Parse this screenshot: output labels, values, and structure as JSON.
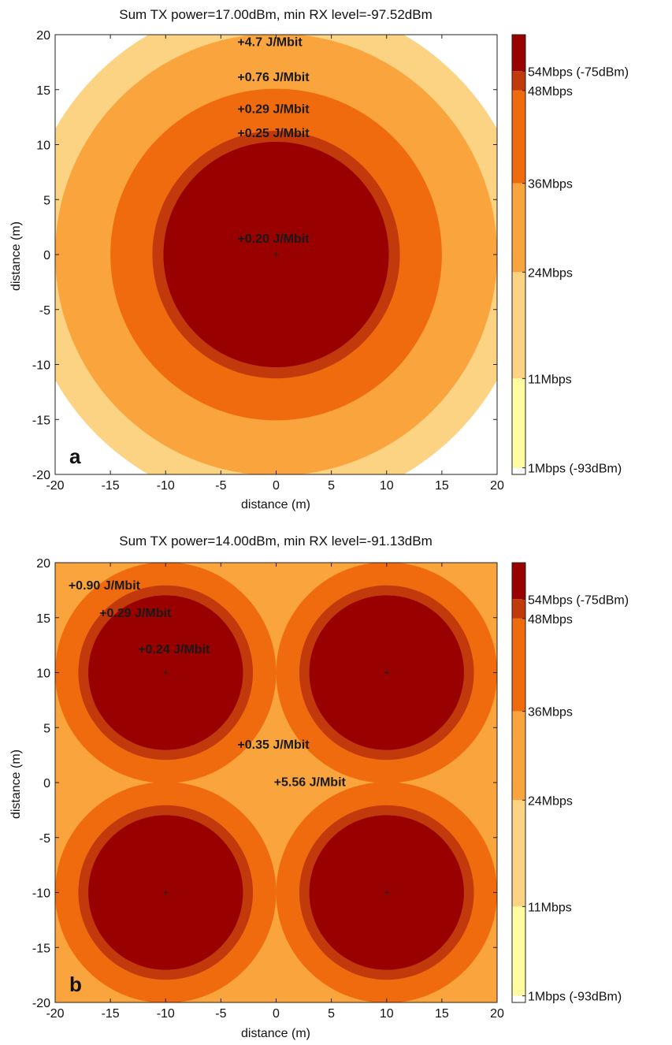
{
  "chart_data": [
    {
      "type": "heatmap",
      "panel": "a",
      "title": "Sum TX power=17.00dBm, min RX level=-97.52dBm",
      "xlabel": "distance (m)",
      "ylabel": "distance (m)",
      "xlim": [
        -20,
        20
      ],
      "ylim": [
        -20,
        20
      ],
      "xticks": [
        "-20",
        "-15",
        "-10",
        "-5",
        "0",
        "5",
        "10",
        "15",
        "20"
      ],
      "yticks": [
        "20",
        "15",
        "10",
        "5",
        "0",
        "-5",
        "-10",
        "-15",
        "-20"
      ],
      "grid": false,
      "access_points": [
        [
          0,
          0
        ]
      ],
      "zone_radii_m": [
        10.2,
        11.2,
        15.0,
        20.0,
        23.0
      ],
      "annotations": [
        {
          "text": "+4.7 J/Mbit",
          "x": -3.5,
          "y": 19.4
        },
        {
          "text": "+0.76 J/Mbit",
          "x": -3.5,
          "y": 16.2
        },
        {
          "text": "+0.29 J/Mbit",
          "x": -3.5,
          "y": 13.3
        },
        {
          "text": "+0.25 J/Mbit",
          "x": -3.5,
          "y": 11.1
        },
        {
          "text": "+0.20 J/Mbit",
          "x": -3.5,
          "y": 1.5
        }
      ]
    },
    {
      "type": "heatmap",
      "panel": "b",
      "title": "Sum TX power=14.00dBm, min RX level=-91.13dBm",
      "xlabel": "distance (m)",
      "ylabel": "distance (m)",
      "xlim": [
        -20,
        20
      ],
      "ylim": [
        -20,
        20
      ],
      "xticks": [
        "-20",
        "-15",
        "-10",
        "-5",
        "0",
        "5",
        "10",
        "15",
        "20"
      ],
      "yticks": [
        "20",
        "15",
        "10",
        "5",
        "0",
        "-5",
        "-10",
        "-15",
        "-20"
      ],
      "grid": false,
      "access_points": [
        [
          -10,
          10
        ],
        [
          10,
          10
        ],
        [
          -10,
          -10
        ],
        [
          10,
          -10
        ]
      ],
      "zone_radii_m": [
        7.0,
        7.9,
        10.0,
        14.5,
        16.0
      ],
      "annotations": [
        {
          "text": "+0.90 J/Mbit",
          "x": -18.8,
          "y": 18.0
        },
        {
          "text": "+0.29 J/Mbit",
          "x": -16.0,
          "y": 15.5
        },
        {
          "text": "+0.24 J/Mbit",
          "x": -12.5,
          "y": 12.2
        },
        {
          "text": "+0.35 J/Mbit",
          "x": -3.5,
          "y": 3.5
        },
        {
          "text": "+5.56 J/Mbit",
          "x": -0.2,
          "y": 0.1
        }
      ]
    }
  ],
  "colorbar": {
    "levels": [
      {
        "label": "54Mbps (-75dBm)",
        "color": "#990000",
        "top": 1.0,
        "bottom": 0.917
      },
      {
        "label": "48Mbps",
        "color": "#c23a0c",
        "top": 0.917,
        "bottom": 0.873
      },
      {
        "label": "36Mbps",
        "color": "#f06a0e",
        "top": 0.873,
        "bottom": 0.662
      },
      {
        "label": "24Mbps",
        "color": "#f9a43c",
        "top": 0.662,
        "bottom": 0.46
      },
      {
        "label": "11Mbps",
        "color": "#fcd283",
        "top": 0.46,
        "bottom": 0.218
      },
      {
        "label": "1Mbps (-93dBm)",
        "color": "#fefca0",
        "top": 0.218,
        "bottom": 0.015
      },
      {
        "label": "",
        "color": "#ffffff",
        "top": 0.015,
        "bottom": 0.0
      }
    ]
  },
  "colors": {
    "zone": [
      "#990000",
      "#c23a0c",
      "#f06a0e",
      "#f9a43c",
      "#fcd283",
      "#fefca0",
      "#ffffff"
    ]
  }
}
